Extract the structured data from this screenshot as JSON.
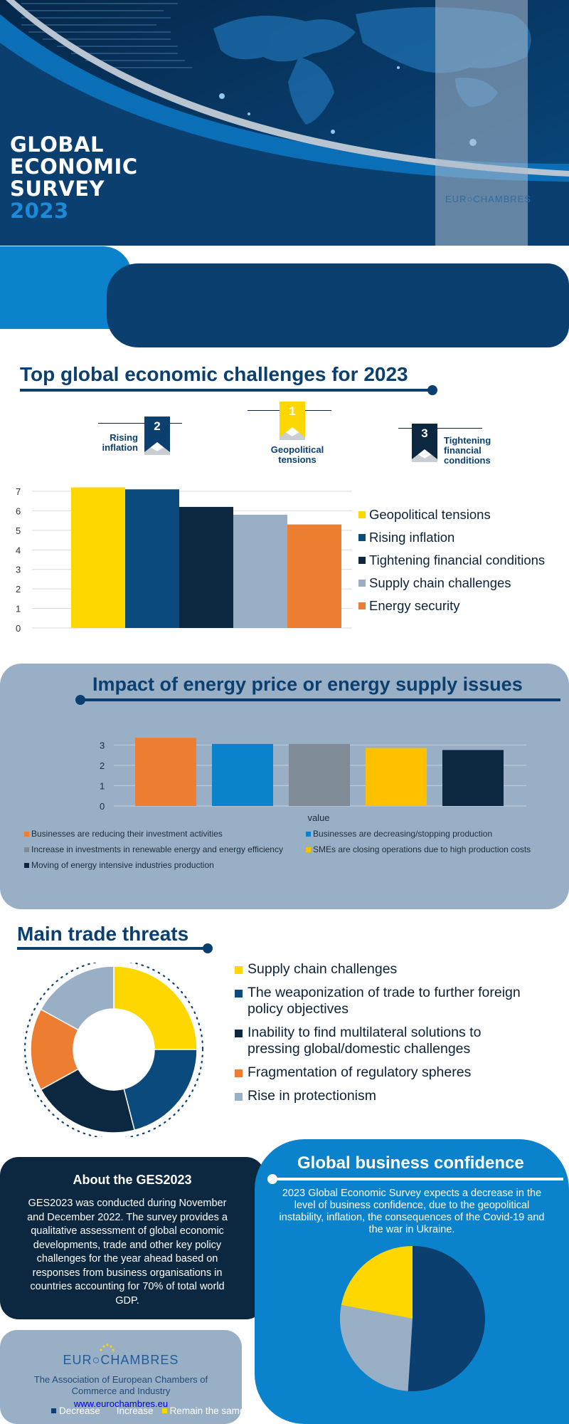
{
  "header": {
    "title_lines": [
      "GLOBAL",
      "ECONOMIC",
      "SURVEY"
    ],
    "year": "2023",
    "logo": "EUR○CHAMBRES"
  },
  "challenges": {
    "title": "Top global economic challenges for 2023",
    "ranks": [
      {
        "rank": "1",
        "label": "Geopolitical tensions",
        "color": "#ffd700"
      },
      {
        "rank": "2",
        "label": "Rising inflation",
        "color": "#0b3f70"
      },
      {
        "rank": "3",
        "label": "Tightening financial conditions",
        "color": "#0c2740"
      }
    ]
  },
  "energy": {
    "title": "Impact of energy price or energy supply issues"
  },
  "trade": {
    "title": "Main trade threats"
  },
  "about": {
    "title": "About the GES2023",
    "text": "GES2023 was conducted during November and December 2022. The survey provides a qualitative assessment of global economic developments, trade and other key policy challenges for the year ahead based on responses from business organisations in countries accounting for 70% of total world GDP."
  },
  "org": {
    "logo": "EUR○CHAMBRES",
    "name": "The Association of European Chambers of Commerce and Industry",
    "url": "www.eurochambres.eu"
  },
  "confidence": {
    "title": "Global business confidence",
    "text": "2023 Global Economic Survey expects a decrease in the level of business confidence, due to the geopolitical instability, inflation, the consequences of the Covid-19 and the war in Ukraine."
  },
  "chart_data": [
    {
      "type": "bar",
      "title": "Top global economic challenges for 2023",
      "categories": [
        "Geopolitical tensions",
        "Rising inflation",
        "Tightening financial conditions",
        "Supply chain challenges",
        "Energy security"
      ],
      "values": [
        7.2,
        7.1,
        6.2,
        5.8,
        5.3
      ],
      "colors": [
        "#ffd700",
        "#0b4a7d",
        "#0c2740",
        "#99afc5",
        "#ed7d31"
      ],
      "ylim": [
        0,
        7
      ],
      "yticks": [
        "0",
        "1",
        "2",
        "3",
        "4",
        "5",
        "6",
        "7"
      ],
      "legend": "right",
      "grid": true
    },
    {
      "type": "bar",
      "title": "Impact of energy price or energy supply issues",
      "xlabel": "value",
      "categories": [
        "Businesses are reducing their investment activities",
        "Businesses are decreasing/stopping production",
        "Increase in investments in renewable energy and energy efficiency",
        "SMEs are closing operations due to high production costs",
        "Moving of energy intensive industries production"
      ],
      "values": [
        3.35,
        3.05,
        3.05,
        2.85,
        2.75
      ],
      "colors": [
        "#ed7d31",
        "#0b82cc",
        "#7f8c98",
        "#ffc000",
        "#0c2740"
      ],
      "ylim": [
        0,
        3.5
      ],
      "yticks": [
        "0",
        "1",
        "2",
        "3"
      ],
      "legend": "bottom",
      "grid": true
    },
    {
      "type": "pie",
      "title": "Main trade threats",
      "donut": true,
      "categories": [
        "Supply chain challenges",
        "The weaponization of trade to further foreign policy objectives",
        "Inability to find multilateral solutions to pressing global/domestic challenges",
        "Fragmentation of regulatory spheres",
        "Rise in protectionism"
      ],
      "values": [
        25,
        21,
        21,
        16,
        17
      ],
      "colors": [
        "#ffd700",
        "#0b4a7d",
        "#0c2740",
        "#ed7d31",
        "#99afc5"
      ],
      "legend": "right"
    },
    {
      "type": "pie",
      "title": "Global business confidence",
      "categories": [
        "Decrease",
        "Increase",
        "Remain the same"
      ],
      "values": [
        51,
        27,
        22
      ],
      "colors": [
        "#0b3f70",
        "#99afc5",
        "#ffd700"
      ],
      "legend": "bottom"
    }
  ]
}
